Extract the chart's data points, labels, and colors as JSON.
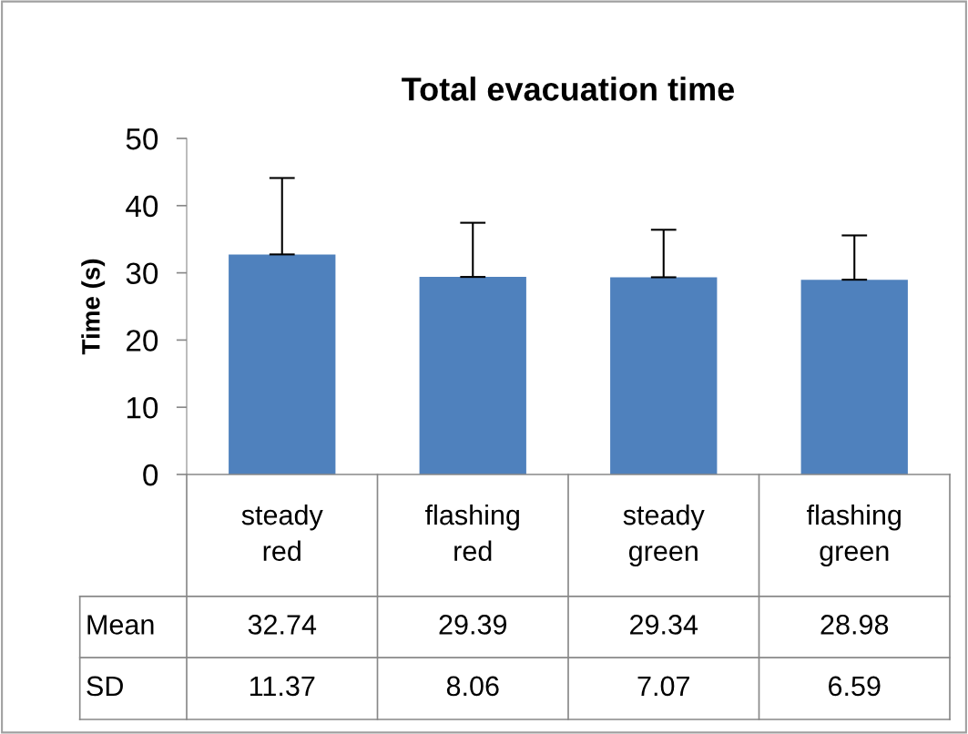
{
  "chart_data": {
    "type": "bar",
    "title": "Total evacuation time",
    "ylabel": "Time (s)",
    "categories": [
      "steady\nred",
      "flashing\nred",
      "steady\ngreen",
      "flashing\ngreen"
    ],
    "values": [
      32.74,
      29.39,
      29.34,
      28.98
    ],
    "color": "#4f81bd",
    "errors": [
      [
        32.74,
        44.11
      ],
      [
        29.39,
        37.45
      ],
      [
        29.34,
        36.41
      ],
      [
        28.98,
        35.57
      ]
    ],
    "data_labels": true,
    "annotations": [
      "Mean",
      "SD",
      "11.37",
      "8.06",
      "7.07",
      "6.59"
    ],
    "ylim": [
      0,
      50
    ],
    "yticks": [
      0,
      10,
      20,
      30,
      40,
      50
    ],
    "grid": false,
    "legend": false
  }
}
